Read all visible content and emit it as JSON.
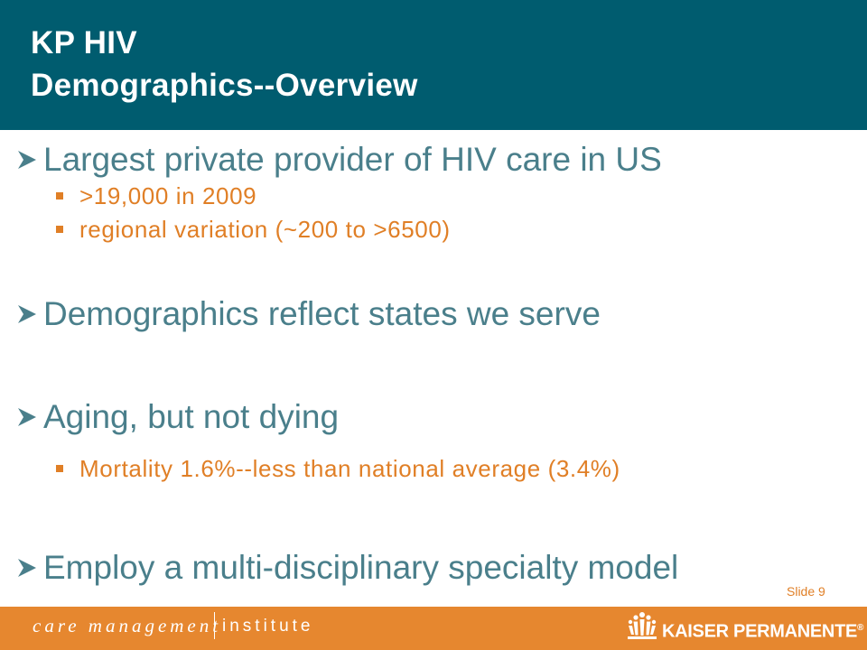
{
  "title": {
    "line1": "KP HIV",
    "line2": "Demographics--Overview"
  },
  "bullets": [
    {
      "text": "Largest private provider of HIV care in US",
      "subs": [
        ">19,000 in 2009",
        "regional variation (~200 to >6500)"
      ]
    },
    {
      "text": "Demographics reflect states we serve",
      "subs": []
    },
    {
      "text": "Aging, but not dying",
      "subs": [
        "Mortality 1.6%--less than national average (3.4%)"
      ]
    },
    {
      "text": "Employ a multi-disciplinary specialty model",
      "subs": []
    }
  ],
  "slide_number": "Slide 9",
  "footer": {
    "left_brand": "care management",
    "left_brand_suffix": "institute",
    "right_brand": "KAISER PERMANENTE",
    "right_brand_mark": "®"
  },
  "colors": {
    "header": "#005c6f",
    "bullet_text": "#4a7f8b",
    "sub_text": "#e07f26",
    "footer": "#e6872f"
  },
  "icons": {
    "bullet": "arrow-bullet-icon",
    "sub_bullet": "square-bullet-icon",
    "logo": "kaiser-permanente-logo-icon"
  }
}
